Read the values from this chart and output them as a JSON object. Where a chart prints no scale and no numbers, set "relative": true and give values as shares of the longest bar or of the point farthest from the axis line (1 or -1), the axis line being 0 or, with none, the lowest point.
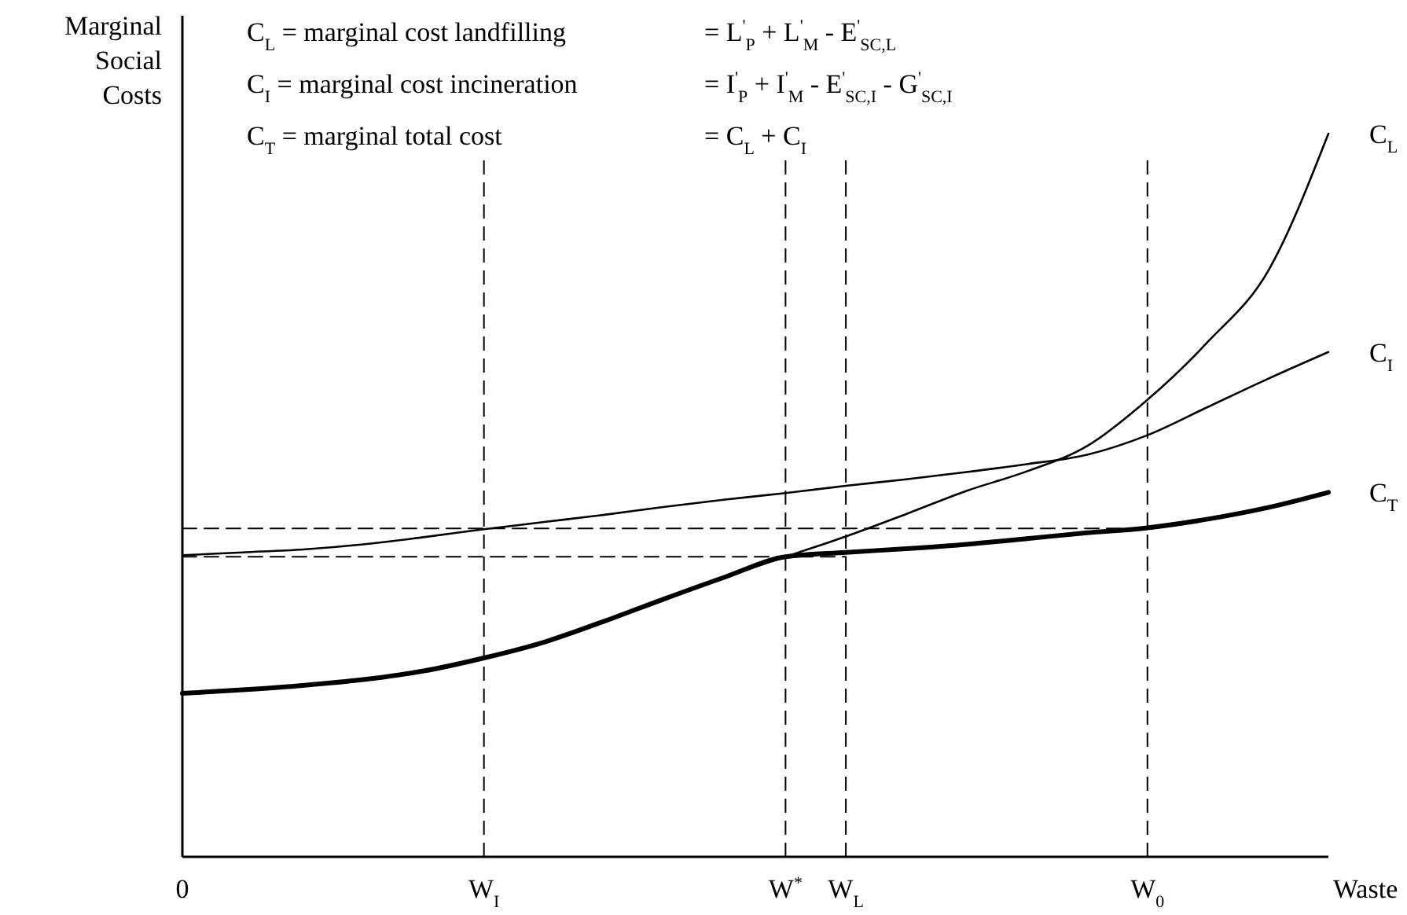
{
  "chart_data": {
    "type": "line",
    "relative": true,
    "ylabel": "Marginal Social Costs",
    "xlabel": "Waste",
    "categories": [
      "0",
      null,
      null,
      null,
      null,
      "W$_{I}$",
      null,
      null,
      null,
      null,
      "W$^{*}$",
      "W$_{L}$",
      null,
      null,
      null,
      null,
      "W$_{0}$",
      null,
      null,
      null
    ],
    "annotations": [
      "C$_{L}$ = marginal cost landfilling",
      "= L$^{'}$$_{P}$ + L$^{'}$$_{M}$ - E$^{'}$$_{SC,L}$",
      "C$_{I}$ = marginal cost incineration",
      "= I$^{'}$$_{P}$ + I$^{'}$$_{M}$ - E$^{'}$$_{SC,I}$ - G$^{'}$$_{SC,I}$",
      "C$_{T}$ = marginal total cost",
      "= C$_{L}$ + C$_{I}$"
    ],
    "ref_lines": [
      {
        "axis": "x",
        "value": "W$_{I}$",
        "color": "#000000",
        "line_style": "dashed"
      },
      {
        "axis": "x",
        "value": "W$^{*}$",
        "color": "#000000",
        "line_style": "dashed"
      },
      {
        "axis": "x",
        "value": "W$_{L}$",
        "color": "#000000",
        "line_style": "dashed"
      },
      {
        "axis": "x",
        "value": "W$_{0}$",
        "color": "#000000",
        "line_style": "dashed"
      }
    ],
    "series": [
      {
        "name": "C$_{L}$",
        "color": "#000000",
        "values": [
          0.226,
          0.231,
          0.237,
          0.245,
          0.257,
          0.275,
          0.297,
          0.326,
          0.357,
          0.387,
          0.415,
          0.443,
          0.474,
          0.506,
          0.533,
          0.568,
          0.632,
          0.712,
          0.81,
          1
        ]
      },
      {
        "name": "C$_{I}$",
        "color": "#000000",
        "values": [
          0.417,
          0.421,
          0.425,
          0.432,
          0.442,
          0.453,
          0.463,
          0.473,
          0.484,
          0.494,
          0.503,
          0.513,
          0.522,
          0.532,
          0.543,
          0.556,
          0.583,
          0.622,
          0.661,
          0.698
        ]
      },
      {
        "name": "C$_{T}$",
        "color": "#000000",
        "values": [
          0.226,
          0.231,
          0.237,
          0.245,
          0.257,
          0.275,
          0.297,
          0.326,
          0.357,
          0.387,
          0.415,
          0.421,
          0.426,
          0.432,
          0.44,
          0.448,
          0.455,
          0.467,
          0.483,
          0.504
        ]
      },
      {
        "color": "#000000",
        "line_style": "dashed",
        "values": [
          0.454,
          0.454,
          0.454,
          0.454,
          0.454,
          0.454,
          0.454,
          0.454,
          0.454,
          0.454,
          0.454,
          0.454,
          0.454,
          0.454,
          0.454,
          0.454,
          0.454,
          null,
          null,
          null
        ]
      },
      {
        "color": "#000000",
        "line_style": "dashed",
        "values": [
          0.415,
          0.415,
          0.415,
          0.415,
          0.415,
          0.415,
          0.415,
          0.415,
          0.415,
          0.415,
          0.415,
          0.415,
          null,
          null,
          null,
          null,
          null,
          null,
          null,
          null
        ]
      }
    ]
  }
}
